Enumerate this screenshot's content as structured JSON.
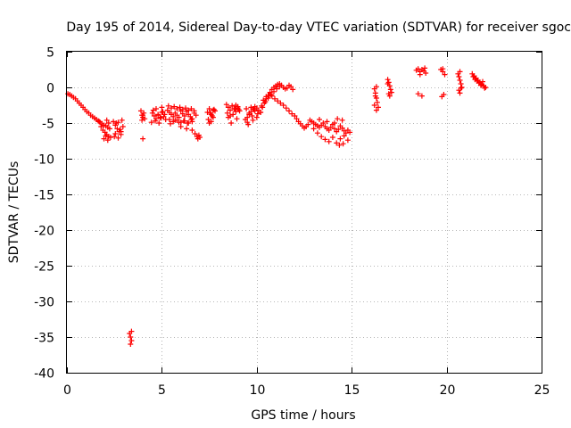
{
  "chart_data": {
    "type": "scatter",
    "title": "Day 195 of 2014, Sidereal Day-to-day VTEC variation (SDTVAR) for receiver sgoc",
    "xlabel": "GPS time / hours",
    "ylabel": "SDTVAR / TECUs",
    "xlim": [
      0,
      25
    ],
    "ylim": [
      -40,
      5
    ],
    "xticks": [
      0,
      5,
      10,
      15,
      20,
      25
    ],
    "yticks": [
      5,
      0,
      -5,
      -10,
      -15,
      -20,
      -25,
      -30,
      -35,
      -40
    ],
    "xtick_labels": [
      "0",
      "5",
      "10",
      "15",
      "20",
      "25"
    ],
    "ytick_labels": [
      "5",
      "0",
      "-5",
      "-10",
      "-15",
      "-20",
      "-25",
      "-30",
      "-35",
      "-40"
    ],
    "grid": true,
    "marker": "+",
    "color": "#ff0000",
    "series": [
      {
        "name": "SDTVAR",
        "x": [
          0.05,
          0.15,
          0.25,
          0.35,
          0.45,
          0.55,
          0.65,
          0.75,
          0.85,
          0.95,
          1.05,
          1.15,
          1.25,
          1.35,
          1.45,
          1.55,
          1.65,
          1.75,
          1.85,
          1.95,
          2.05,
          2.15,
          2.25,
          1.8,
          1.9,
          2.0,
          2.1,
          2.2,
          2.3,
          1.7,
          1.95,
          2.1,
          2.2,
          2.05,
          2.15,
          2.45,
          2.55,
          2.65,
          2.75,
          2.85,
          2.95,
          2.5,
          2.6,
          2.7,
          2.8,
          2.9,
          2.55,
          2.7,
          2.85,
          3.3,
          3.35,
          3.4,
          3.35,
          3.4,
          3.95,
          4.0,
          4.05,
          4.1,
          3.9,
          4.0,
          3.95,
          4.0,
          4.5,
          4.6,
          4.7,
          4.8,
          4.9,
          5.0,
          5.1,
          5.2,
          4.55,
          4.65,
          4.8,
          4.95,
          5.05,
          5.15,
          4.45,
          4.7,
          4.85,
          5.0,
          5.3,
          5.4,
          5.5,
          5.6,
          5.7,
          5.8,
          5.9,
          6.0,
          6.1,
          6.2,
          6.3,
          6.4,
          6.5,
          6.6,
          6.7,
          6.8,
          5.35,
          5.5,
          5.65,
          5.8,
          5.95,
          6.1,
          6.25,
          6.4,
          6.55,
          6.7,
          5.4,
          5.6,
          5.8,
          6.0,
          6.2,
          6.4,
          6.6,
          5.45,
          5.7,
          5.9,
          6.15,
          6.35,
          6.55,
          6.0,
          6.3,
          6.6,
          6.75,
          6.85,
          6.9,
          6.95,
          7.0,
          7.4,
          7.5,
          7.6,
          7.7,
          7.8,
          7.45,
          7.55,
          7.65,
          7.75,
          7.5,
          7.6,
          7.7,
          8.4,
          8.5,
          8.6,
          8.7,
          8.8,
          8.9,
          9.0,
          9.1,
          8.45,
          8.6,
          8.75,
          8.9,
          9.05,
          8.5,
          8.7,
          8.85,
          9.0,
          8.65,
          8.95,
          9.4,
          9.5,
          9.6,
          9.7,
          9.8,
          9.9,
          10.0,
          10.1,
          10.2,
          9.45,
          9.6,
          9.75,
          9.9,
          10.05,
          9.5,
          9.7,
          9.85,
          10.0,
          9.55,
          9.8,
          10.2,
          10.3,
          10.4,
          10.5,
          10.6,
          10.7,
          10.8,
          10.9,
          11.0,
          11.1,
          11.2,
          11.3,
          11.4,
          11.5,
          11.6,
          11.7,
          11.8,
          11.9,
          10.35,
          10.5,
          10.65,
          10.8,
          10.95,
          11.1,
          11.25,
          11.4,
          11.55,
          11.7,
          11.85,
          12.0,
          12.1,
          12.2,
          12.3,
          12.4,
          12.5,
          12.6,
          12.7,
          10.25,
          10.45,
          10.6,
          10.75,
          10.9,
          11.05,
          11.2,
          12.8,
          12.9,
          13.0,
          13.1,
          13.2,
          13.3,
          13.4,
          13.5,
          13.6,
          13.7,
          13.8,
          13.9,
          14.0,
          14.1,
          14.2,
          14.3,
          14.4,
          14.5,
          14.6,
          14.7,
          14.8,
          14.9,
          13.0,
          13.2,
          13.4,
          13.6,
          13.8,
          14.0,
          14.2,
          14.4,
          14.6,
          14.8,
          13.3,
          13.7,
          14.1,
          14.5,
          14.35,
          14.55,
          14.25,
          16.2,
          16.25,
          16.3,
          16.35,
          16.4,
          16.3,
          16.2,
          16.25,
          16.3,
          16.9,
          16.95,
          17.0,
          17.05,
          17.1,
          16.95,
          17.0,
          16.9,
          18.4,
          18.5,
          18.6,
          18.7,
          18.8,
          18.9,
          18.5,
          18.7,
          18.85,
          18.6,
          19.7,
          19.8,
          19.9,
          19.75,
          19.85,
          19.8,
          20.6,
          20.65,
          20.7,
          20.75,
          20.8,
          20.65,
          20.7,
          20.75,
          20.7,
          21.35,
          21.45,
          21.55,
          21.65,
          21.75,
          21.85,
          21.95,
          22.05,
          21.4,
          21.6,
          21.8,
          22.0,
          21.5,
          21.7,
          21.9
        ],
        "y": [
          -0.9,
          -1.0,
          -1.2,
          -1.4,
          -1.6,
          -1.9,
          -2.2,
          -2.5,
          -2.8,
          -3.1,
          -3.4,
          -3.6,
          -3.9,
          -4.1,
          -4.3,
          -4.5,
          -4.7,
          -4.9,
          -5.1,
          -5.3,
          -5.4,
          -5.6,
          -5.8,
          -5.5,
          -6.0,
          -6.3,
          -6.6,
          -6.9,
          -7.0,
          -4.8,
          -7.2,
          -4.6,
          -5.0,
          -6.8,
          -7.4,
          -4.8,
          -5.3,
          -5.8,
          -6.2,
          -6.6,
          -5.5,
          -6.9,
          -5.0,
          -7.1,
          -5.9,
          -4.6,
          -6.5,
          -4.9,
          -6.2,
          -34.5,
          -35.0,
          -35.5,
          -36.0,
          -34.2,
          -3.9,
          -4.2,
          -3.6,
          -4.4,
          -3.3,
          -7.2,
          -4.6,
          -3.9,
          -3.6,
          -4.0,
          -4.4,
          -3.8,
          -4.2,
          -3.5,
          -4.1,
          -4.5,
          -3.2,
          -4.7,
          -3.9,
          -4.3,
          -3.4,
          -3.8,
          -4.9,
          -3.0,
          -5.0,
          -2.8,
          -3.2,
          -3.5,
          -3.8,
          -4.1,
          -3.6,
          -3.9,
          -4.2,
          -3.3,
          -3.7,
          -4.0,
          -3.4,
          -3.8,
          -4.1,
          -4.4,
          -3.6,
          -3.9,
          -2.6,
          -2.9,
          -2.7,
          -3.0,
          -2.8,
          -3.1,
          -2.9,
          -3.2,
          -3.0,
          -3.3,
          -4.5,
          -4.8,
          -4.6,
          -4.9,
          -4.7,
          -5.0,
          -4.8,
          -5.1,
          -4.6,
          -4.9,
          -4.7,
          -5.0,
          -4.5,
          -5.5,
          -5.8,
          -6.0,
          -6.5,
          -6.9,
          -7.2,
          -6.7,
          -7.0,
          -3.5,
          -3.0,
          -3.8,
          -4.2,
          -3.3,
          -4.5,
          -3.6,
          -4.0,
          -3.1,
          -5.0,
          -4.8,
          -3.2,
          -2.4,
          -2.8,
          -3.2,
          -2.6,
          -3.0,
          -2.5,
          -2.9,
          -3.3,
          -3.6,
          -4.0,
          -3.8,
          -3.4,
          -3.1,
          -4.2,
          -2.6,
          -3.0,
          -2.7,
          -5.0,
          -4.4,
          -4.5,
          -4.2,
          -3.8,
          -3.4,
          -3.0,
          -2.7,
          -2.9,
          -3.2,
          -3.5,
          -3.0,
          -3.6,
          -4.0,
          -3.3,
          -3.7,
          -4.9,
          -2.8,
          -3.1,
          -4.2,
          -5.2,
          -4.6,
          -3.5,
          -2.8,
          -2.2,
          -1.6,
          -1.1,
          -0.7,
          -0.3,
          0.0,
          0.2,
          0.4,
          0.5,
          0.3,
          0.0,
          -0.2,
          -0.1,
          0.3,
          0.1,
          -0.3,
          -1.8,
          -1.3,
          -1.1,
          -1.2,
          -1.6,
          -1.9,
          -2.2,
          -2.5,
          -2.9,
          -3.3,
          -3.7,
          -4.0,
          -4.4,
          -4.8,
          -5.1,
          -5.4,
          -5.7,
          -5.5,
          -5.2,
          -2.6,
          -2.0,
          -1.5,
          -1.0,
          -0.6,
          -0.2,
          0.1,
          -4.6,
          -4.8,
          -5.0,
          -5.2,
          -5.4,
          -5.6,
          -5.3,
          -5.0,
          -5.5,
          -5.8,
          -6.0,
          -5.6,
          -5.2,
          -5.8,
          -6.2,
          -5.9,
          -5.4,
          -5.7,
          -6.1,
          -6.4,
          -6.0,
          -6.3,
          -5.8,
          -6.4,
          -6.9,
          -7.3,
          -7.6,
          -7.0,
          -7.8,
          -7.2,
          -6.8,
          -7.4,
          -4.5,
          -4.8,
          -5.0,
          -4.6,
          -8.1,
          -7.9,
          -4.4,
          -0.2,
          -0.8,
          -1.5,
          -2.1,
          -2.8,
          -3.2,
          -2.5,
          -1.2,
          0.1,
          1.1,
          0.7,
          0.2,
          -0.3,
          -0.7,
          -0.9,
          -1.2,
          0.5,
          2.4,
          2.6,
          2.2,
          2.5,
          2.3,
          2.0,
          -0.9,
          -1.2,
          2.7,
          1.8,
          2.5,
          2.2,
          1.8,
          -1.3,
          -1.0,
          2.6,
          1.9,
          1.5,
          1.0,
          0.5,
          0.0,
          -0.4,
          -0.8,
          -0.1,
          2.2,
          1.9,
          1.6,
          1.3,
          1.0,
          0.7,
          0.4,
          0.2,
          0.0,
          1.5,
          0.9,
          0.3,
          -0.1,
          1.1,
          0.6,
          0.8
        ]
      }
    ]
  }
}
